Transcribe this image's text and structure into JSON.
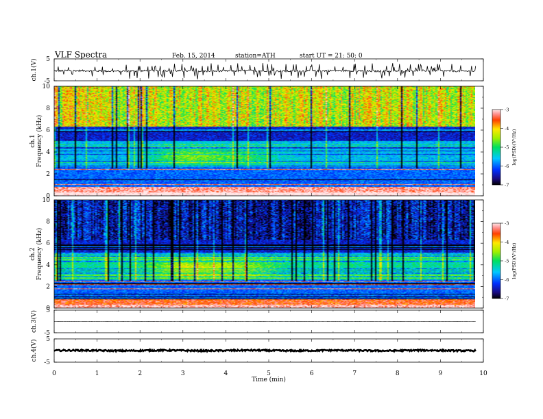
{
  "header": {
    "title": "VLF  Spectra",
    "date": "Feb. 15, 2014",
    "station": "station=ATH",
    "start": "start  UT  =   21: 50: 0"
  },
  "chart_data": [
    {
      "type": "line",
      "name": "ch1",
      "ylabel": "ch.1(V)",
      "ylim": [
        -5,
        5
      ],
      "yticks": [
        "5",
        "-5"
      ],
      "xlim": [
        0,
        10
      ],
      "baseline": -0.5,
      "noise": 0.4,
      "spikes": 120
    },
    {
      "type": "heatmap",
      "name": "spec1",
      "ylabel": [
        "ch.1",
        "Frequency  (kHz)"
      ],
      "ylim": [
        0,
        10
      ],
      "yticks": [
        "0",
        "2",
        "4",
        "6",
        "8",
        "10"
      ],
      "xlim": [
        0,
        9.8
      ],
      "colorbar": {
        "label": "log(PSD)(V²/Hz)",
        "ticks": [
          "-3",
          "-4",
          "-5",
          "-6",
          "-7"
        ],
        "range": [
          -7,
          -3
        ]
      },
      "description_levels": {
        "low_band_psd": -3.2,
        "mid_band_psd": -6.2,
        "high_band_psd": -4.3
      }
    },
    {
      "type": "heatmap",
      "name": "spec2",
      "ylabel": [
        "ch.2",
        "Frequency  (kHz)"
      ],
      "ylim": [
        0,
        10
      ],
      "yticks": [
        "0",
        "2",
        "4",
        "6",
        "8",
        "10"
      ],
      "xlim": [
        0,
        9.8
      ],
      "colorbar": {
        "label": "log(PSD)(V²/Hz)",
        "ticks": [
          "-3",
          "-4",
          "-5",
          "-6",
          "-7"
        ],
        "range": [
          -7,
          -3
        ]
      },
      "description_levels": {
        "low_band_psd": -3.5,
        "mid_band_psd": -5.8,
        "high_band_psd": -6.5
      }
    },
    {
      "type": "line",
      "name": "ch3",
      "ylabel": "ch.3(V)",
      "ylim": [
        -5,
        5
      ],
      "yticks": [
        "5",
        "-5"
      ],
      "xlim": [
        0,
        10
      ],
      "baseline": 0,
      "noise": 0.05,
      "spikes": 0
    },
    {
      "type": "line",
      "name": "ch4",
      "ylabel": "ch.4(V)",
      "ylim": [
        -5,
        5
      ],
      "yticks": [
        "5",
        "-5"
      ],
      "xlim": [
        0,
        10
      ],
      "baseline": 0,
      "noise": 0.3,
      "spikes": 0
    }
  ],
  "xaxis": {
    "label": "Time  (min)",
    "ticks": [
      "0",
      "1",
      "2",
      "3",
      "4",
      "5",
      "6",
      "7",
      "8",
      "9",
      "10"
    ]
  }
}
